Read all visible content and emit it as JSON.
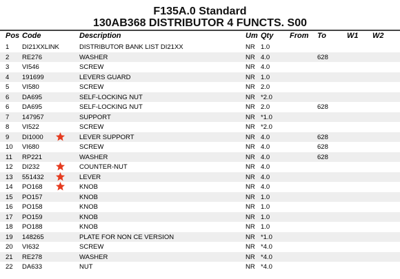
{
  "title": {
    "line1": "F135A.0 Standard",
    "line2": "130AB368 DISTRIBUTOR 4 FUNCTS.  S00"
  },
  "columns": {
    "pos": "Pos",
    "code": "Code",
    "description": "Description",
    "um": "Um",
    "qty": "Qty",
    "from": "From",
    "to": "To",
    "w1": "W1",
    "w2": "W2"
  },
  "star_color": "#e53b1f",
  "rows": [
    {
      "pos": "1",
      "code": "DI21XXLINK",
      "desc": "DISTRIBUTOR BANK LIST DI21XX",
      "um": "NR",
      "qty": "1.0",
      "to": "",
      "star": false
    },
    {
      "pos": "2",
      "code": "RE276",
      "desc": "WASHER",
      "um": "NR",
      "qty": "4.0",
      "to": "628",
      "star": false
    },
    {
      "pos": "3",
      "code": "VI546",
      "desc": "SCREW",
      "um": "NR",
      "qty": "4.0",
      "to": "",
      "star": false
    },
    {
      "pos": "4",
      "code": "191699",
      "desc": "LEVERS GUARD",
      "um": "NR",
      "qty": "1.0",
      "to": "",
      "star": false
    },
    {
      "pos": "5",
      "code": "VI580",
      "desc": "SCREW",
      "um": "NR",
      "qty": "2.0",
      "to": "",
      "star": false
    },
    {
      "pos": "6",
      "code": "DA695",
      "desc": "SELF-LOCKING NUT",
      "um": "NR",
      "qty": "*2.0",
      "to": "",
      "star": false
    },
    {
      "pos": "6",
      "code": "DA695",
      "desc": "SELF-LOCKING NUT",
      "um": "NR",
      "qty": "2.0",
      "to": "628",
      "star": false
    },
    {
      "pos": "7",
      "code": "147957",
      "desc": "SUPPORT",
      "um": "NR",
      "qty": "*1.0",
      "to": "",
      "star": false
    },
    {
      "pos": "8",
      "code": "VI522",
      "desc": "SCREW",
      "um": "NR",
      "qty": "*2.0",
      "to": "",
      "star": false
    },
    {
      "pos": "9",
      "code": "DI1000",
      "desc": "LEVER SUPPORT",
      "um": "NR",
      "qty": "4.0",
      "to": "628",
      "star": true
    },
    {
      "pos": "10",
      "code": "VI680",
      "desc": "SCREW",
      "um": "NR",
      "qty": "4.0",
      "to": "628",
      "star": false
    },
    {
      "pos": "11",
      "code": "RP221",
      "desc": "WASHER",
      "um": "NR",
      "qty": "4.0",
      "to": "628",
      "star": false
    },
    {
      "pos": "12",
      "code": "DI232",
      "desc": "COUNTER-NUT",
      "um": "NR",
      "qty": "4.0",
      "to": "",
      "star": true
    },
    {
      "pos": "13",
      "code": "551432",
      "desc": "LEVER",
      "um": "NR",
      "qty": "4.0",
      "to": "",
      "star": true
    },
    {
      "pos": "14",
      "code": "PO168",
      "desc": "KNOB",
      "um": "NR",
      "qty": "4.0",
      "to": "",
      "star": true
    },
    {
      "pos": "15",
      "code": "PO157",
      "desc": "KNOB",
      "um": "NR",
      "qty": "1.0",
      "to": "",
      "star": false
    },
    {
      "pos": "16",
      "code": "PO158",
      "desc": "KNOB",
      "um": "NR",
      "qty": "1.0",
      "to": "",
      "star": false
    },
    {
      "pos": "17",
      "code": "PO159",
      "desc": "KNOB",
      "um": "NR",
      "qty": "1.0",
      "to": "",
      "star": false
    },
    {
      "pos": "18",
      "code": "PO188",
      "desc": "KNOB",
      "um": "NR",
      "qty": "1.0",
      "to": "",
      "star": false
    },
    {
      "pos": "19",
      "code": "148265",
      "desc": "PLATE FOR NON CE VERSION",
      "um": "NR",
      "qty": "*1.0",
      "to": "",
      "star": false
    },
    {
      "pos": "20",
      "code": "VI632",
      "desc": "SCREW",
      "um": "NR",
      "qty": "*4.0",
      "to": "",
      "star": false
    },
    {
      "pos": "21",
      "code": "RE278",
      "desc": "WASHER",
      "um": "NR",
      "qty": "*4.0",
      "to": "",
      "star": false
    },
    {
      "pos": "22",
      "code": "DA633",
      "desc": "NUT",
      "um": "NR",
      "qty": "*4.0",
      "to": "",
      "star": false
    }
  ]
}
